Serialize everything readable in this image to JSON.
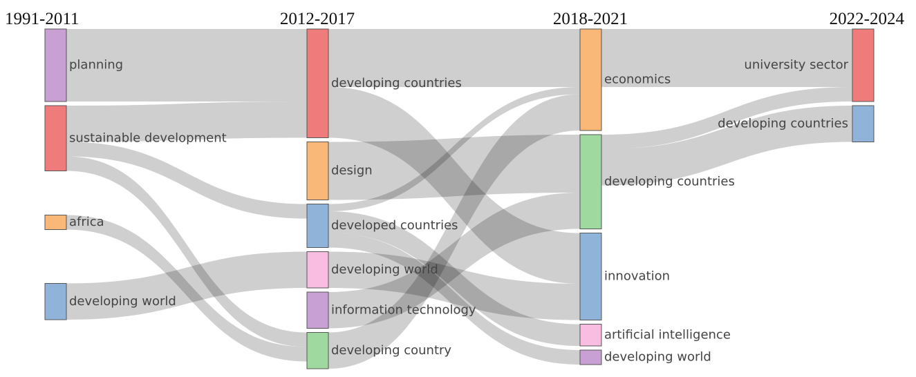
{
  "periods": [
    "1991-2011",
    "2012-2017",
    "2018-2021",
    "2022-2024"
  ],
  "nodes": [
    {
      "id": "p1_planning",
      "label": "planning",
      "period": 0,
      "color": "#c9a0d4"
    },
    {
      "id": "p1_sustainable",
      "label": "sustainable development",
      "period": 0,
      "color": "#ef7b7b"
    },
    {
      "id": "p1_africa",
      "label": "africa",
      "period": 0,
      "color": "#f9b878"
    },
    {
      "id": "p1_devworld",
      "label": "developing world",
      "period": 0,
      "color": "#8fb3d9"
    },
    {
      "id": "p2_devcountries",
      "label": "developing countries",
      "period": 1,
      "color": "#ef7b7b"
    },
    {
      "id": "p2_design",
      "label": "design",
      "period": 1,
      "color": "#f9b878"
    },
    {
      "id": "p2_developed",
      "label": "developed countries",
      "period": 1,
      "color": "#8fb3d9"
    },
    {
      "id": "p2_devworld",
      "label": "developing world",
      "period": 1,
      "color": "#f8bde0"
    },
    {
      "id": "p2_infotech",
      "label": "information technology",
      "period": 1,
      "color": "#c9a0d4"
    },
    {
      "id": "p2_devcountry",
      "label": "developing country",
      "period": 1,
      "color": "#9fd99f"
    },
    {
      "id": "p3_economics",
      "label": "economics",
      "period": 2,
      "color": "#f9b878"
    },
    {
      "id": "p3_devcountries",
      "label": "developing countries",
      "period": 2,
      "color": "#9fd99f"
    },
    {
      "id": "p3_innovation",
      "label": "innovation",
      "period": 2,
      "color": "#8fb3d9"
    },
    {
      "id": "p3_ai",
      "label": "artificial intelligence",
      "period": 2,
      "color": "#f8bde0"
    },
    {
      "id": "p3_devworld",
      "label": "developing world",
      "period": 2,
      "color": "#c9a0d4"
    },
    {
      "id": "p4_university",
      "label": "university sector",
      "period": 3,
      "color": "#ef7b7b"
    },
    {
      "id": "p4_devcountries",
      "label": "developing countries",
      "period": 3,
      "color": "#8fb3d9"
    }
  ],
  "links": [
    {
      "source": "p1_planning",
      "target": "p2_devcountries",
      "value": 10
    },
    {
      "source": "p1_sustainable",
      "target": "p2_devcountries",
      "value": 5
    },
    {
      "source": "p1_sustainable",
      "target": "p2_developed",
      "value": 2
    },
    {
      "source": "p1_sustainable",
      "target": "p2_devcountry",
      "value": 2
    },
    {
      "source": "p1_africa",
      "target": "p2_devcountry",
      "value": 2
    },
    {
      "source": "p1_devworld",
      "target": "p2_devworld",
      "value": 5
    },
    {
      "source": "p2_devcountries",
      "target": "p3_innovation",
      "value": 7
    },
    {
      "source": "p2_devcountries",
      "target": "p3_economics",
      "value": 8
    },
    {
      "source": "p2_design",
      "target": "p3_devcountries",
      "value": 8
    },
    {
      "source": "p2_developed",
      "target": "p3_economics",
      "value": 1
    },
    {
      "source": "p2_developed",
      "target": "p3_ai",
      "value": 3
    },
    {
      "source": "p2_developed",
      "target": "p3_devworld",
      "value": 2
    },
    {
      "source": "p2_devworld",
      "target": "p3_innovation",
      "value": 5
    },
    {
      "source": "p2_infotech",
      "target": "p3_devcountries",
      "value": 5
    },
    {
      "source": "p2_devcountry",
      "target": "p3_economics",
      "value": 5
    },
    {
      "source": "p3_economics",
      "target": "p4_university",
      "value": 8
    },
    {
      "source": "p3_devcountries",
      "target": "p4_university",
      "value": 2
    },
    {
      "source": "p3_devcountries",
      "target": "p4_devcountries",
      "value": 5
    }
  ]
}
